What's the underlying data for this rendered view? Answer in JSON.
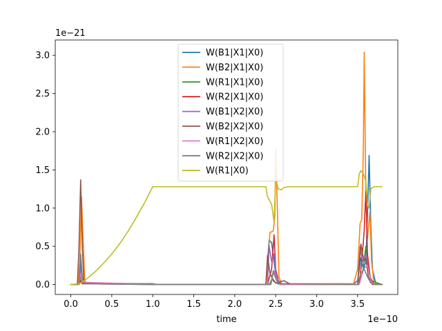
{
  "chart_data": {
    "type": "line",
    "xlabel": "time",
    "x_offset_label": "1e−10",
    "y_offset_label": "1e−21",
    "x_scale": 1e-10,
    "y_scale": 1e-21,
    "xlim": [
      -0.19,
      3.99
    ],
    "ylim": [
      -0.13,
      3.2
    ],
    "x_ticks": [
      0.0,
      0.5,
      1.0,
      1.5,
      2.0,
      2.5,
      3.0,
      3.5
    ],
    "x_tick_labels": [
      "0.0",
      "0.5",
      "1.0",
      "1.5",
      "2.0",
      "2.5",
      "3.0",
      "3.5"
    ],
    "y_ticks": [
      0.0,
      0.5,
      1.0,
      1.5,
      2.0,
      2.5,
      3.0
    ],
    "y_tick_labels": [
      "0.0",
      "0.5",
      "1.0",
      "1.5",
      "2.0",
      "2.5",
      "3.0"
    ],
    "legend_position": "upper-center",
    "grid": false,
    "series": [
      {
        "name": "W(B1|X1|X0)",
        "color": "#1f77b4",
        "points": [
          [
            0,
            0
          ],
          [
            0.08,
            0
          ],
          [
            0.1,
            0.05
          ],
          [
            0.12,
            0.3
          ],
          [
            0.14,
            0.05
          ],
          [
            0.16,
            0.01
          ],
          [
            1.0,
            0.01
          ],
          [
            1.05,
            0
          ],
          [
            2.38,
            0
          ],
          [
            2.4,
            0.3
          ],
          [
            2.42,
            0.58
          ],
          [
            2.45,
            0.55
          ],
          [
            2.48,
            0.3
          ],
          [
            2.5,
            0.15
          ],
          [
            2.53,
            0.05
          ],
          [
            2.57,
            0.01
          ],
          [
            3.45,
            0.01
          ],
          [
            3.5,
            0.05
          ],
          [
            3.54,
            0.35
          ],
          [
            3.57,
            0.2
          ],
          [
            3.6,
            0.3
          ],
          [
            3.62,
            0.9
          ],
          [
            3.64,
            1.69
          ],
          [
            3.66,
            0.8
          ],
          [
            3.68,
            0.2
          ],
          [
            3.72,
            0.02
          ],
          [
            3.8,
            0
          ]
        ]
      },
      {
        "name": "W(B2|X1|X0)",
        "color": "#ff7f0e",
        "points": [
          [
            0,
            0
          ],
          [
            0.09,
            0
          ],
          [
            0.11,
            0.3
          ],
          [
            0.13,
            1.15
          ],
          [
            0.15,
            0.6
          ],
          [
            0.17,
            0.05
          ],
          [
            0.2,
            0.01
          ],
          [
            1.0,
            0.01
          ],
          [
            1.05,
            0
          ],
          [
            2.38,
            0
          ],
          [
            2.4,
            0.2
          ],
          [
            2.43,
            0.68
          ],
          [
            2.47,
            0.7
          ],
          [
            2.49,
            0.9
          ],
          [
            2.5,
            1.78
          ],
          [
            2.52,
            1.0
          ],
          [
            2.54,
            0.1
          ],
          [
            2.57,
            0.01
          ],
          [
            3.45,
            0.01
          ],
          [
            3.5,
            0.2
          ],
          [
            3.53,
            0.8
          ],
          [
            3.55,
            0.85
          ],
          [
            3.57,
            1.8
          ],
          [
            3.58,
            3.04
          ],
          [
            3.6,
            1.2
          ],
          [
            3.62,
            0.6
          ],
          [
            3.65,
            0.95
          ],
          [
            3.67,
            0.3
          ],
          [
            3.7,
            0.02
          ],
          [
            3.8,
            0
          ]
        ]
      },
      {
        "name": "W(R1|X1|X0)",
        "color": "#2ca02c",
        "points": [
          [
            0,
            0
          ],
          [
            0.1,
            0
          ],
          [
            0.12,
            0.1
          ],
          [
            0.14,
            0.02
          ],
          [
            1.0,
            0.01
          ],
          [
            1.05,
            0
          ],
          [
            2.42,
            0
          ],
          [
            2.46,
            0.08
          ],
          [
            2.5,
            0.02
          ],
          [
            2.56,
            0
          ],
          [
            3.5,
            0
          ],
          [
            3.56,
            0.15
          ],
          [
            3.6,
            0.5
          ],
          [
            3.63,
            0.3
          ],
          [
            3.66,
            0.05
          ],
          [
            3.8,
            0
          ]
        ]
      },
      {
        "name": "W(R2|X1|X0)",
        "color": "#d62728",
        "points": [
          [
            0,
            0
          ],
          [
            0.1,
            0
          ],
          [
            0.12,
            0.05
          ],
          [
            0.14,
            0.01
          ],
          [
            1.05,
            0
          ],
          [
            2.4,
            0
          ],
          [
            2.45,
            0.2
          ],
          [
            2.48,
            0.65
          ],
          [
            2.5,
            0.2
          ],
          [
            2.54,
            0.02
          ],
          [
            2.6,
            0
          ],
          [
            3.52,
            0
          ],
          [
            3.55,
            0.3
          ],
          [
            3.58,
            0.7
          ],
          [
            3.6,
            1.22
          ],
          [
            3.62,
            0.4
          ],
          [
            3.65,
            0.1
          ],
          [
            3.7,
            0
          ],
          [
            3.8,
            0
          ]
        ]
      },
      {
        "name": "W(B1|X2|X0)",
        "color": "#9467bd",
        "points": [
          [
            0,
            0
          ],
          [
            0.1,
            0
          ],
          [
            0.12,
            0.2
          ],
          [
            0.14,
            0.05
          ],
          [
            0.16,
            0.01
          ],
          [
            1.05,
            0
          ],
          [
            2.4,
            0
          ],
          [
            2.42,
            0.5
          ],
          [
            2.45,
            0.3
          ],
          [
            2.48,
            0.4
          ],
          [
            2.51,
            0.1
          ],
          [
            2.55,
            0.02
          ],
          [
            2.6,
            0
          ],
          [
            3.5,
            0
          ],
          [
            3.53,
            0.5
          ],
          [
            3.56,
            0.3
          ],
          [
            3.6,
            0.4
          ],
          [
            3.63,
            0.2
          ],
          [
            3.66,
            0.05
          ],
          [
            3.7,
            0
          ],
          [
            3.8,
            0
          ]
        ]
      },
      {
        "name": "W(B2|X2|X0)",
        "color": "#8c564b",
        "points": [
          [
            0,
            0
          ],
          [
            0.08,
            0
          ],
          [
            0.1,
            0.5
          ],
          [
            0.12,
            1.37
          ],
          [
            0.14,
            0.5
          ],
          [
            0.16,
            0.02
          ],
          [
            1.05,
            0
          ],
          [
            2.38,
            0
          ],
          [
            2.4,
            0.38
          ],
          [
            2.43,
            0.15
          ],
          [
            2.47,
            0.05
          ],
          [
            2.5,
            0.02
          ],
          [
            2.6,
            0.05
          ],
          [
            2.65,
            0.02
          ],
          [
            2.7,
            0
          ],
          [
            3.5,
            0
          ],
          [
            3.52,
            0.25
          ],
          [
            3.54,
            0.53
          ],
          [
            3.56,
            0.4
          ],
          [
            3.58,
            0.3
          ],
          [
            3.6,
            0.35
          ],
          [
            3.63,
            0.1
          ],
          [
            3.68,
            0
          ],
          [
            3.8,
            0
          ]
        ]
      },
      {
        "name": "W(R1|X2|X0)",
        "color": "#e377c2",
        "points": [
          [
            0,
            0
          ],
          [
            0.1,
            0
          ],
          [
            0.12,
            0.15
          ],
          [
            0.14,
            0.03
          ],
          [
            1.05,
            0
          ],
          [
            2.44,
            0
          ],
          [
            2.48,
            0.18
          ],
          [
            2.51,
            0.05
          ],
          [
            2.55,
            0
          ],
          [
            3.52,
            0
          ],
          [
            3.57,
            0.2
          ],
          [
            3.62,
            0.25
          ],
          [
            3.66,
            0.05
          ],
          [
            3.7,
            0
          ],
          [
            3.8,
            0
          ]
        ]
      },
      {
        "name": "W(R2|X2|X0)",
        "color": "#7f7f7f",
        "points": [
          [
            0,
            0
          ],
          [
            0.1,
            0
          ],
          [
            0.12,
            0.4
          ],
          [
            0.14,
            0.1
          ],
          [
            0.16,
            0.01
          ],
          [
            1.05,
            0
          ],
          [
            2.44,
            0
          ],
          [
            2.47,
            0.18
          ],
          [
            2.5,
            0.08
          ],
          [
            2.54,
            0.01
          ],
          [
            3.5,
            0
          ],
          [
            3.54,
            0.15
          ],
          [
            3.58,
            0.2
          ],
          [
            3.62,
            0.1
          ],
          [
            3.66,
            0.02
          ],
          [
            3.7,
            0
          ],
          [
            3.8,
            0
          ]
        ]
      },
      {
        "name": "W(R1|X0)",
        "color": "#bcbd22",
        "points": [
          [
            0,
            0
          ],
          [
            0.1,
            0.01
          ],
          [
            0.15,
            0.04
          ],
          [
            0.2,
            0.08
          ],
          [
            0.3,
            0.17
          ],
          [
            0.4,
            0.28
          ],
          [
            0.5,
            0.4
          ],
          [
            0.6,
            0.54
          ],
          [
            0.7,
            0.7
          ],
          [
            0.8,
            0.88
          ],
          [
            0.9,
            1.07
          ],
          [
            1.0,
            1.28
          ],
          [
            1.05,
            1.28
          ],
          [
            2.38,
            1.28
          ],
          [
            2.4,
            1.15
          ],
          [
            2.45,
            1.05
          ],
          [
            2.48,
            0.82
          ],
          [
            2.5,
            1.4
          ],
          [
            2.53,
            1.25
          ],
          [
            2.57,
            1.24
          ],
          [
            2.6,
            1.27
          ],
          [
            2.65,
            1.28
          ],
          [
            3.5,
            1.28
          ],
          [
            3.52,
            1.45
          ],
          [
            3.54,
            1.49
          ],
          [
            3.57,
            1.45
          ],
          [
            3.6,
            1.35
          ],
          [
            3.62,
            1.05
          ],
          [
            3.64,
            1.0
          ],
          [
            3.66,
            1.25
          ],
          [
            3.7,
            1.28
          ],
          [
            3.8,
            1.28
          ]
        ]
      }
    ]
  }
}
